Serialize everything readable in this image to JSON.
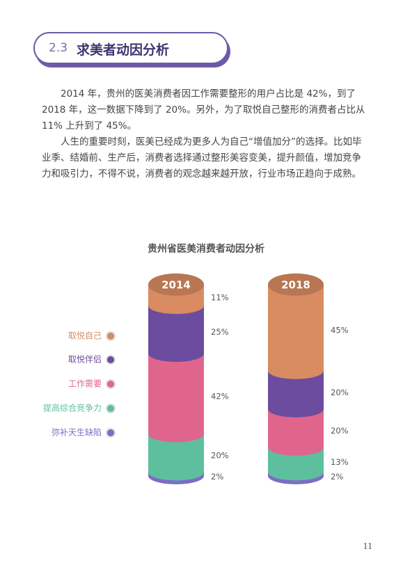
{
  "header": {
    "number": "2.3",
    "title": "求美者动因分析"
  },
  "paragraphs": [
    "2014 年，贵州的医美消费者因工作需要整形的用户占比是 42%，到了 2018 年，这一数据下降到了 20%。另外，为了取悦自己整形的消费者占比从 11% 上升到了 45%。",
    "人生的重要时刻，医美已经成为更多人为自己“增值加分”的选择。比如毕业季、结婚前、生产后，消费者选择通过整形美容变美，提升颜值，增加竞争力和吸引力，不得不说，消费者的观念越来越开放，行业市场正趋向于成熟。"
  ],
  "chart_data": {
    "type": "stacked-cylinder",
    "title": "贵州省医美消费者动因分析",
    "categories": [
      "2014",
      "2018"
    ],
    "series": [
      {
        "name": "取悦自己",
        "color": "#d98b62",
        "values": [
          11,
          45
        ],
        "value_labels": [
          "11%",
          "45%"
        ]
      },
      {
        "name": "取悦伴侣",
        "color": "#6b4c9e",
        "values": [
          25,
          20
        ],
        "value_labels": [
          "25%",
          "20%"
        ]
      },
      {
        "name": "工作需要",
        "color": "#e0658c",
        "values": [
          42,
          20
        ],
        "value_labels": [
          "42%",
          "20%"
        ]
      },
      {
        "name": "提高综合竞争力",
        "color": "#5dbf9e",
        "values": [
          20,
          13
        ],
        "value_labels": [
          "20%",
          "13%"
        ]
      },
      {
        "name": "弥补天生缺陷",
        "color": "#7d6cc6",
        "values": [
          2,
          2
        ],
        "value_labels": [
          "2%",
          "2%"
        ]
      }
    ]
  },
  "page_number": "11"
}
